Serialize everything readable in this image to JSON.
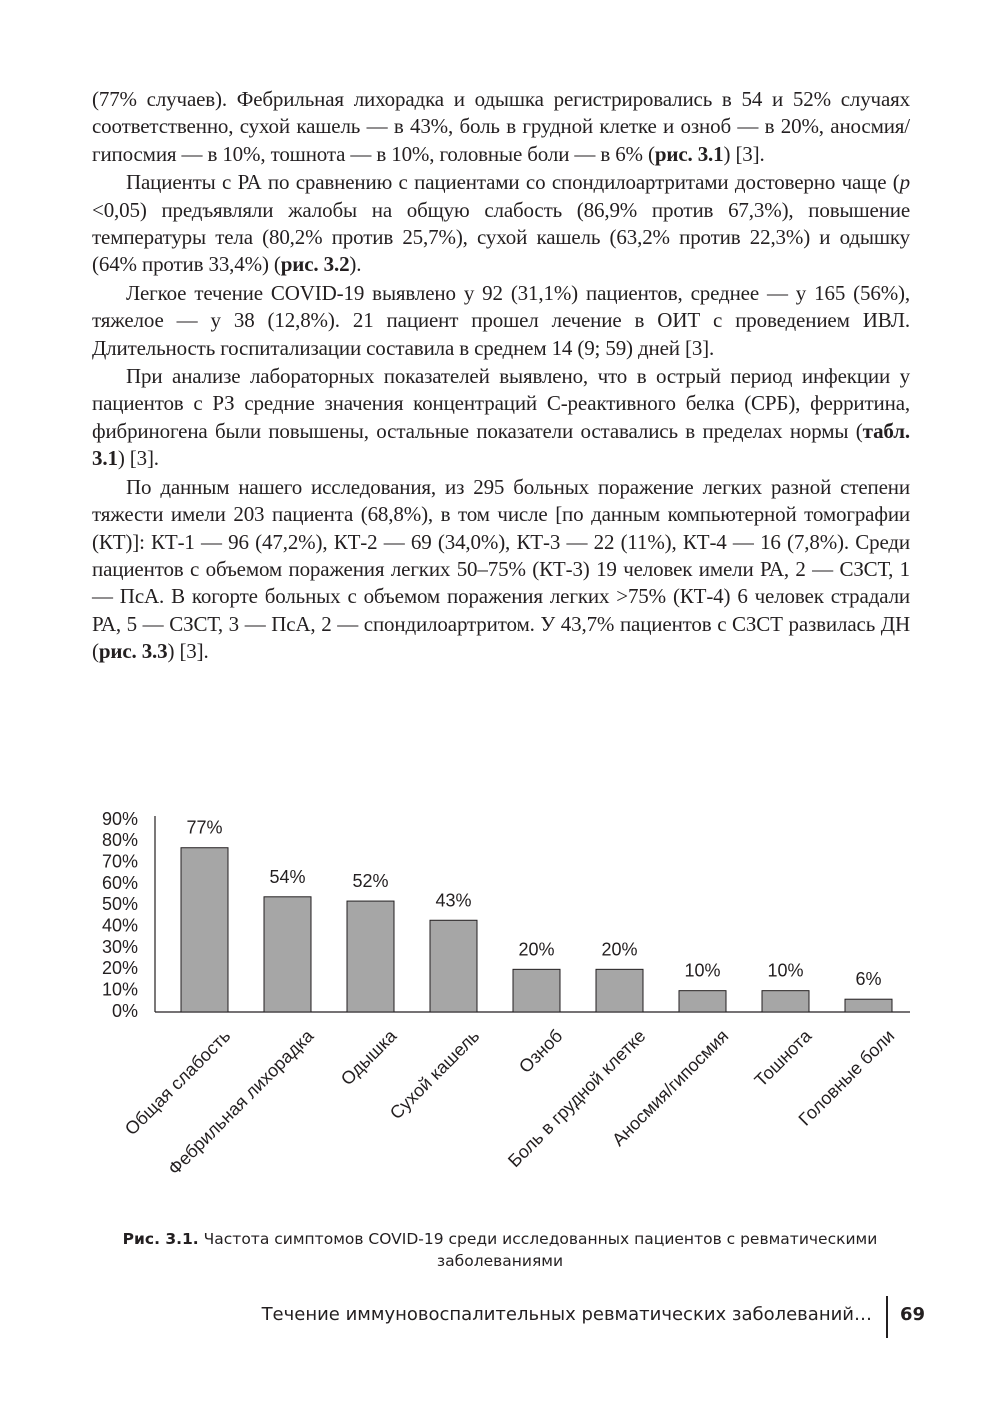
{
  "paragraphs": [
    [
      "(77% случаев). Фебрильная лихорадка и одышка регистрировались в 54 и 52% случаях соответственно, сухой кашель — в 43%, боль в грудной клетке и озноб — в 20%, аносмия/гипосмия — в 10%, тошнота — в 10%, головные боли — в 6% (",
      {
        "text": "рис. 3.1",
        "bold": true
      },
      ") [3]."
    ],
    [
      "Пациенты с РА по сравнению с пациентами со спондилоартритами достоверно чаще (",
      {
        "text": "p",
        "italic": true
      },
      " <0,05) предъявляли жалобы на общую слабость (86,9% против 67,3%), повышение температуры тела (80,2% против 25,7%), сухой кашель (63,2% против 22,3%) и одышку (64% против 33,4%) (",
      {
        "text": "рис. 3.2",
        "bold": true
      },
      ")."
    ],
    [
      "Легкое течение COVID-19 выявлено у 92 (31,1%) пациентов, среднее — у 165 (56%), тяжелое — у 38 (12,8%). 21 пациент прошел лечение в ОИТ с проведением ИВЛ. Длительность госпитализации составила в среднем 14 (9; 59) дней [3]."
    ],
    [
      "При анализе лабораторных показателей выявлено, что в острый период инфекции у пациентов с РЗ средние значения концентраций С-реактивного белка (СРБ), ферритина, фибриногена были повышены, остальные показатели оставались в пределах нормы (",
      {
        "text": "табл. 3.1",
        "bold": true
      },
      ") [3]."
    ],
    [
      "По данным нашего исследования, из 295 больных поражение легких разной степени тяжести имели 203 пациента (68,8%), в том числе [по данным компьютерной томографии (КТ)]: КТ-1 — 96 (47,2%), КТ-2 — 69 (34,0%), КТ-3 — 22 (11%), КТ-4 — 16 (7,8%). Среди пациентов с объемом поражения легких 50–75% (КТ-3) 19 человек имели РА, 2 — СЗСТ, 1 — ПсА. В когорте больных с объемом поражения легких >75% (КТ-4) 6 человек страдали РА, 5 — СЗСТ, 3 — ПсА, 2 — спондилоартритом. У 43,7% пациентов с СЗСТ развилась ДН (",
      {
        "text": "рис. 3.3",
        "bold": true
      },
      ") [3]."
    ]
  ],
  "figure": {
    "chart_data": {
      "type": "bar",
      "categories": [
        "Общая слабость",
        "Фебрильная лихорадка",
        "Одышка",
        "Сухой кашель",
        "Озноб",
        "Боль в грудной клетке",
        "Аносмия/гипосмия",
        "Тошнота",
        "Головные боли"
      ],
      "values": [
        77,
        54,
        52,
        43,
        20,
        20,
        10,
        10,
        6
      ],
      "value_labels": [
        "77%",
        "54%",
        "52%",
        "43%",
        "20%",
        "20%",
        "10%",
        "10%",
        "6%"
      ],
      "color": "#a6a6a6",
      "ylim": [
        0,
        90
      ],
      "yticks": [
        {
          "value": 0,
          "label": "0%"
        },
        {
          "value": 10,
          "label": "10%"
        },
        {
          "value": 20,
          "label": "20%"
        },
        {
          "value": 30,
          "label": "30%"
        },
        {
          "value": 40,
          "label": "40%"
        },
        {
          "value": 50,
          "label": "50%"
        },
        {
          "value": 60,
          "label": "60%"
        },
        {
          "value": 70,
          "label": "70%"
        },
        {
          "value": 80,
          "label": "80%"
        },
        {
          "value": 90,
          "label": "90%"
        }
      ],
      "grid": false
    },
    "caption": {
      "label": "Рис. 3.1.",
      "text": "Частота симптомов COVID-19 среди исследованных пациентов с ревматическими заболеваниями"
    }
  },
  "footer": {
    "running_title": "Течение иммуновоспалительных ревматических заболеваний…",
    "page_number": "69"
  }
}
